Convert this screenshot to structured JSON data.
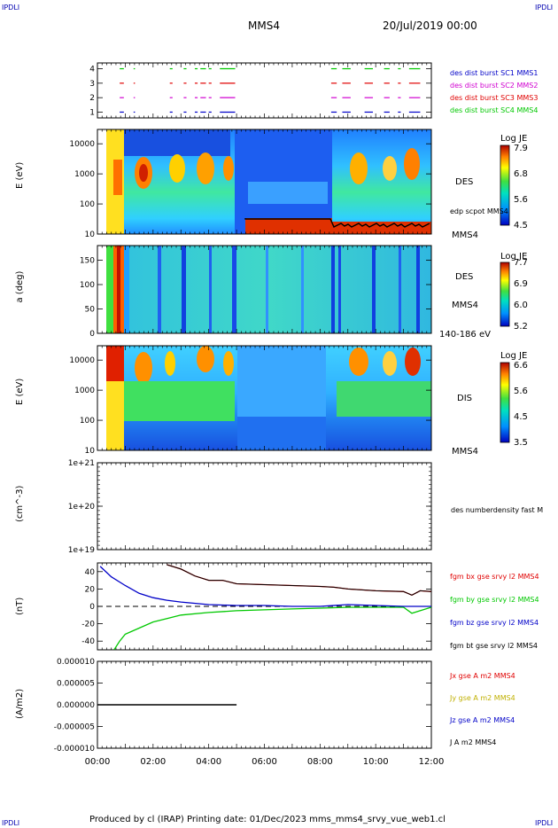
{
  "header": {
    "corner_left": "IPDLI",
    "corner_right": "IPDLI",
    "title": "MMS4",
    "date": "20/Jul/2019 00:00"
  },
  "footer": {
    "text": "Produced by cl (IRAP)   Printing date: 01/Dec/2023   mms_mms4_srvy_vue_web1.cl",
    "corner_left": "IPDLI",
    "corner_right": "IPDLI"
  },
  "colors": {
    "c1": "#0000c8",
    "c2": "#d000d0",
    "c3": "#e00000",
    "c4": "#00c800",
    "bx": "#e00000",
    "by": "#00c800",
    "bz": "#0000c8",
    "bt": "#000000"
  },
  "chart_data": [
    {
      "type": "timeline",
      "yticks": [
        "1",
        "2",
        "3",
        "4"
      ],
      "legend": [
        "des dist burst SC1 MMS1",
        "des dist burst SC2 MMS2",
        "des dist burst SC3 MMS3",
        "des dist burst SC4 MMS4"
      ],
      "segments_hours": [
        [
          0.8,
          0.95
        ],
        [
          1.3,
          1.35
        ],
        [
          2.6,
          2.7
        ],
        [
          3.1,
          3.2
        ],
        [
          3.5,
          3.6
        ],
        [
          3.7,
          3.9
        ],
        [
          4.0,
          4.1
        ],
        [
          4.4,
          4.95
        ],
        [
          8.4,
          8.6
        ],
        [
          8.8,
          9.1
        ],
        [
          9.6,
          9.9
        ],
        [
          10.3,
          10.5
        ],
        [
          10.8,
          10.9
        ],
        [
          11.2,
          11.6
        ]
      ]
    },
    {
      "type": "heatmap",
      "ylabel": "E (eV)",
      "yscale": "log",
      "ylim": [
        10,
        30000
      ],
      "yticks": [
        "10",
        "100",
        "1000",
        "10000"
      ],
      "label": "DES",
      "label2": "MMS4",
      "colorbar": {
        "title": "Log JE",
        "ticks": [
          "4.5",
          "5.6",
          "6.8",
          "7.9"
        ]
      },
      "overlay_label": "edp scpot MMS4"
    },
    {
      "type": "heatmap",
      "ylabel": "a (deg)",
      "ylim": [
        0,
        180
      ],
      "yticks": [
        "0",
        "50",
        "100",
        "150"
      ],
      "label": "DES",
      "label2": "MMS4",
      "range_label": "140-186 eV",
      "colorbar": {
        "title": "Log JE",
        "ticks": [
          "5.2",
          "6.0",
          "6.9",
          "7.7"
        ]
      }
    },
    {
      "type": "heatmap",
      "ylabel": "E (eV)",
      "yscale": "log",
      "ylim": [
        10,
        30000
      ],
      "yticks": [
        "10",
        "100",
        "1000",
        "10000"
      ],
      "label": "DIS",
      "label2": "MMS4",
      "colorbar": {
        "title": "Log JE",
        "ticks": [
          "3.5",
          "4.5",
          "5.6",
          "6.6"
        ]
      }
    },
    {
      "type": "line",
      "ylabel": "(cm^-3)",
      "yscale": "log",
      "yticks": [
        "1e+19",
        "1e+20",
        "1e+21"
      ],
      "legend": [
        "des numberdensity fast M"
      ]
    },
    {
      "type": "line",
      "ylabel": "(nT)",
      "ylim": [
        -50,
        50
      ],
      "yticks": [
        "-40",
        "-20",
        "0",
        "20",
        "40"
      ],
      "legend": [
        "fgm bx gse srvy l2 MMS4",
        "fgm by gse srvy l2 MMS4",
        "fgm bz gse srvy l2 MMS4",
        "fgm bt gse srvy l2 MMS4"
      ],
      "series": [
        {
          "name": "fgm bx gse srvy l2 MMS4",
          "x": [
            2.5,
            3.0,
            3.5,
            4.0,
            4.5,
            5.0,
            6.0,
            7.0,
            8.0,
            8.5,
            9.0,
            10.0,
            11.0,
            11.3,
            11.6,
            12.0
          ],
          "values": [
            48,
            43,
            35,
            30,
            30,
            26,
            25,
            24,
            23,
            22,
            20,
            18,
            17,
            13,
            18,
            17
          ]
        },
        {
          "name": "fgm by gse srvy l2 MMS4",
          "x": [
            0.6,
            0.8,
            1.0,
            1.5,
            2.0,
            2.5,
            3.0,
            4.0,
            5.0,
            6.0,
            7.0,
            8.0,
            9.0,
            10.0,
            11.0,
            11.3,
            12.0
          ],
          "values": [
            -50,
            -40,
            -32,
            -25,
            -18,
            -14,
            -10,
            -7,
            -5,
            -4,
            -3,
            -2,
            -1,
            -1,
            -1,
            -8,
            -1
          ]
        },
        {
          "name": "fgm bz gse srvy l2 MMS4",
          "x": [
            0.1,
            0.5,
            1.0,
            1.5,
            2.0,
            2.5,
            3.0,
            4.0,
            5.0,
            6.0,
            7.0,
            8.0,
            9.0,
            10.0,
            11.0,
            12.0
          ],
          "values": [
            46,
            34,
            24,
            15,
            10,
            7,
            5,
            2,
            1,
            1,
            0,
            0,
            2,
            1,
            0,
            0
          ]
        },
        {
          "name": "fgm bt gse srvy l2 MMS4",
          "x": [
            2.5,
            3.0,
            3.5,
            4.0,
            4.5,
            5.0,
            6.0,
            7.0,
            8.0,
            8.5,
            9.0,
            10.0,
            11.0,
            11.3,
            11.6,
            12.0
          ],
          "values": [
            48,
            43,
            35,
            30,
            30,
            26,
            25,
            24,
            23,
            22,
            20,
            18,
            17,
            13,
            18,
            17
          ]
        }
      ]
    },
    {
      "type": "line",
      "ylabel": "(A/m2)",
      "ylim": [
        -1e-05,
        1e-05
      ],
      "yticks": [
        "-0.000010",
        "-0.000005",
        "0.000000",
        "0.000005",
        "0.000010"
      ],
      "legend": [
        "Jx gse A m2 MMS4",
        "Jy gse A m2 MMS4",
        "Jz gse A m2 MMS4",
        "J A m2 MMS4"
      ],
      "series": [
        {
          "name": "J A m2 MMS4",
          "x": [
            0,
            5.0
          ],
          "values": [
            0,
            0
          ]
        }
      ]
    }
  ],
  "xaxis": {
    "ticks": [
      "00:00",
      "02:00",
      "04:00",
      "06:00",
      "08:00",
      "10:00",
      "12:00"
    ]
  }
}
